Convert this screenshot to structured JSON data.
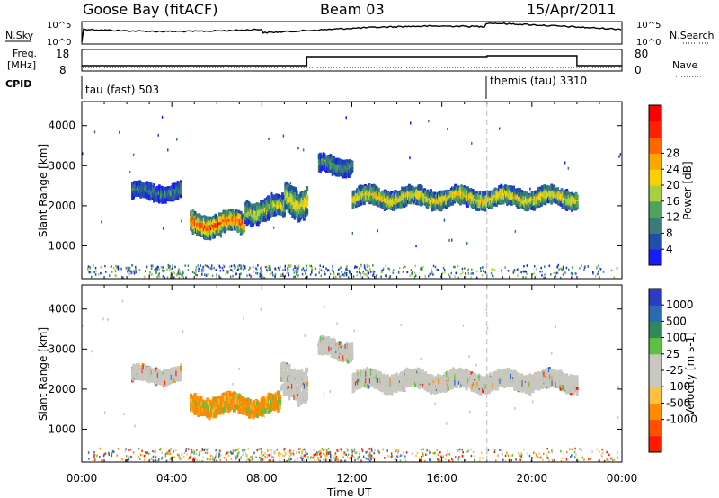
{
  "header": {
    "station": "Goose Bay (fitACF)",
    "beam": "Beam 03",
    "date": "15/Apr/2011"
  },
  "panels": {
    "nsky": {
      "left_label": "N.Sky",
      "right_label": "N.Search",
      "tick_hi": "10^5",
      "tick_lo": "10^0"
    },
    "freq": {
      "left_label_1": "Freq.",
      "left_label_2": "[MHz]",
      "right_label": "Nave",
      "left_ticks": [
        "18",
        "8"
      ],
      "right_ticks": [
        "80",
        "0"
      ]
    },
    "cpid": {
      "left_label": "CPID",
      "modes": [
        {
          "label": "tau (fast) 503",
          "start_hour": 0
        },
        {
          "label": "themis (tau) 3310",
          "start_hour": 18
        }
      ]
    }
  },
  "chart_data": [
    {
      "type": "heatmap",
      "name": "Power",
      "ylabel": "Slant Range [km]",
      "yticks": [
        1000,
        2000,
        3000,
        4000
      ],
      "ylim": [
        180,
        4600
      ],
      "xlim_hours": [
        0,
        24
      ],
      "colorbar": {
        "label": "Power [dB]",
        "ticks": [
          "4",
          "8",
          "12",
          "16",
          "20",
          "24",
          "28"
        ],
        "colors": [
          "#1a1aff",
          "#1f4fa8",
          "#3d7c76",
          "#4ea35b",
          "#a8cf3d",
          "#ffd000",
          "#ffa500",
          "#ff6600",
          "#ff2200",
          "#ff0000"
        ]
      },
      "echo_regions": [
        {
          "hours": [
            2.2,
            4.4
          ],
          "range_km": [
            2100,
            2600
          ],
          "level": 0.3
        },
        {
          "hours": [
            4.8,
            7.2
          ],
          "range_km": [
            1200,
            1900
          ],
          "level": 0.85
        },
        {
          "hours": [
            7.2,
            9.0
          ],
          "range_km": [
            1500,
            2300
          ],
          "level": 0.5
        },
        {
          "hours": [
            9.0,
            10.0
          ],
          "range_km": [
            1600,
            2800
          ],
          "level": 0.55
        },
        {
          "hours": [
            10.5,
            12.0
          ],
          "range_km": [
            2700,
            3300
          ],
          "level": 0.35
        },
        {
          "hours": [
            12.0,
            22.0
          ],
          "range_km": [
            1900,
            2500
          ],
          "level": 0.6
        }
      ]
    },
    {
      "type": "heatmap",
      "name": "Velocity",
      "ylabel": "Slant Range [km]",
      "yticks": [
        1000,
        2000,
        3000,
        4000
      ],
      "ylim": [
        180,
        4600
      ],
      "xlabel": "Time UT",
      "xticks": [
        "00:00",
        "04:00",
        "08:00",
        "12:00",
        "16:00",
        "20:00",
        "00:00"
      ],
      "xlim_hours": [
        0,
        24
      ],
      "colorbar": {
        "label": "Velocity [m s-1]",
        "ticks": [
          "1000",
          "500",
          "100",
          "25",
          "-25",
          "-100",
          "-500",
          "-1000"
        ],
        "colors": [
          "#2b3bc4",
          "#2a6ab0",
          "#2f8a5a",
          "#5fc040",
          "#c8c8c0",
          "#c8c8c0",
          "#ffc040",
          "#ff8a00",
          "#ff5000",
          "#ff1a00"
        ]
      },
      "echo_regions": [
        {
          "hours": [
            2.2,
            4.4
          ],
          "range_km": [
            2100,
            2600
          ],
          "value": 0
        },
        {
          "hours": [
            4.8,
            8.8
          ],
          "range_km": [
            1300,
            1900
          ],
          "value": -300
        },
        {
          "hours": [
            8.8,
            10.0
          ],
          "range_km": [
            1600,
            2800
          ],
          "value": 0
        },
        {
          "hours": [
            10.5,
            12.0
          ],
          "range_km": [
            2700,
            3300
          ],
          "value": 0
        },
        {
          "hours": [
            12.0,
            22.0
          ],
          "range_km": [
            1900,
            2500
          ],
          "value": 0
        }
      ]
    }
  ]
}
